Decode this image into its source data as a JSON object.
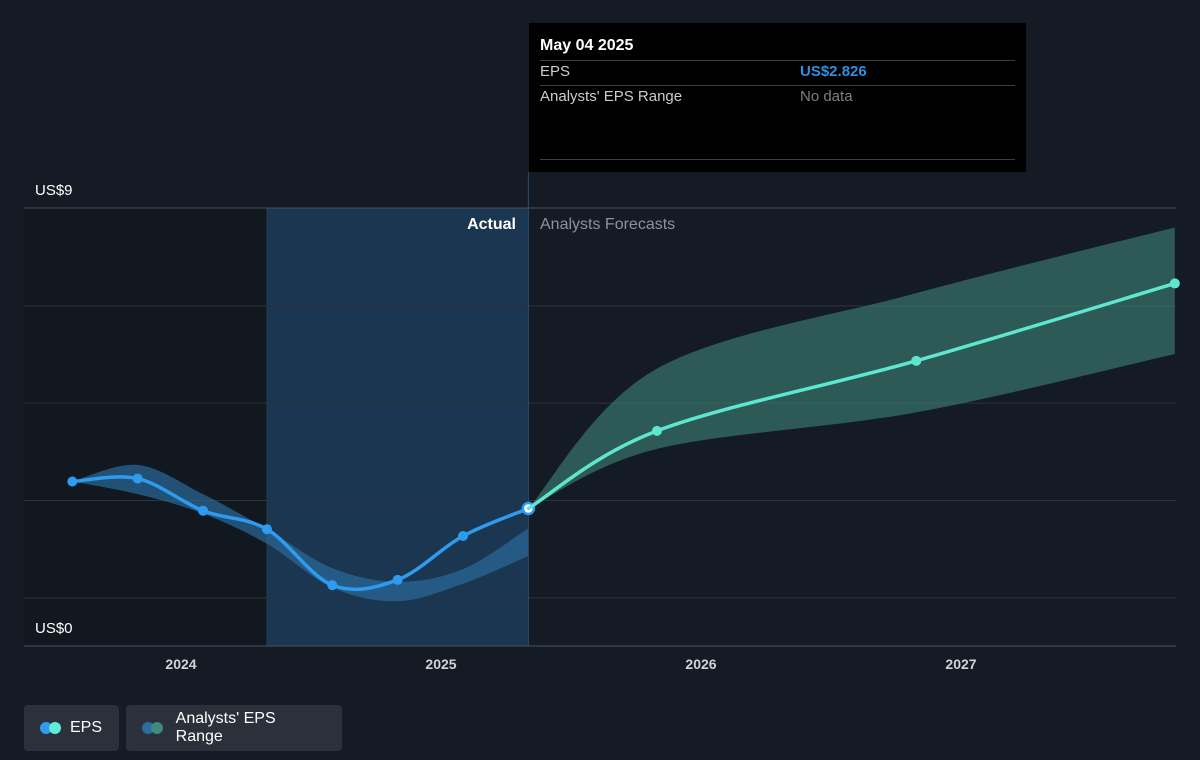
{
  "tooltip": {
    "date": "May 04 2025",
    "rows": [
      {
        "label": "EPS",
        "value": "US$2.826",
        "color": "#2f8fe0"
      },
      {
        "label": "Analysts' EPS Range",
        "value": "No data",
        "color": "#7b8088"
      }
    ]
  },
  "labels": {
    "actual": "Actual",
    "forecasts": "Analysts Forecasts"
  },
  "legend": [
    {
      "label": "EPS",
      "colors": [
        "#2f9bef",
        "#62ead6"
      ]
    },
    {
      "label": "Analysts' EPS Range",
      "colors": [
        "#2e6c9b",
        "#3f8a80"
      ]
    }
  ],
  "colors": {
    "actual_line": "#2f9bef",
    "forecast_line": "#5ee6cf",
    "actual_band": "#2b6a9a",
    "forecast_band": "#3b7f78",
    "highlight": "#1a3650",
    "background": "#151b24"
  },
  "chart_data": {
    "type": "line",
    "ylim": [
      0,
      9
    ],
    "y_tick_labels": [
      {
        "value": 9,
        "label": "US$9"
      },
      {
        "value": 0,
        "label": "US$0"
      }
    ],
    "x_ticks": [
      "2024",
      "2025",
      "2026",
      "2027"
    ],
    "grid": true,
    "legend_position": "bottom-left",
    "series": [
      {
        "name": "EPS",
        "segment": "actual",
        "points": [
          {
            "x": "2023-08-01",
            "y": 3.38
          },
          {
            "x": "2023-11-01",
            "y": 3.44
          },
          {
            "x": "2024-02-01",
            "y": 2.78
          },
          {
            "x": "2024-05-01",
            "y": 2.4
          },
          {
            "x": "2024-08-01",
            "y": 1.25
          },
          {
            "x": "2024-11-01",
            "y": 1.36
          },
          {
            "x": "2025-02-01",
            "y": 2.26
          },
          {
            "x": "2025-05-04",
            "y": 2.826
          }
        ]
      },
      {
        "name": "EPS",
        "segment": "forecast",
        "points": [
          {
            "x": "2025-05-04",
            "y": 2.826
          },
          {
            "x": "2025-11-01",
            "y": 4.42
          },
          {
            "x": "2026-11-01",
            "y": 5.86
          },
          {
            "x": "2027-10-31",
            "y": 7.45
          }
        ]
      },
      {
        "name": "Analysts' EPS Range",
        "segment": "actual",
        "points": [
          {
            "x": "2023-08-01",
            "low": 3.38,
            "high": 3.38
          },
          {
            "x": "2023-11-01",
            "low": 3.12,
            "high": 3.72
          },
          {
            "x": "2024-02-01",
            "low": 2.72,
            "high": 3.12
          },
          {
            "x": "2024-05-01",
            "low": 2.1,
            "high": 2.4
          },
          {
            "x": "2024-08-01",
            "low": 1.2,
            "high": 1.6
          },
          {
            "x": "2024-11-01",
            "low": 0.92,
            "high": 1.32
          },
          {
            "x": "2025-02-01",
            "low": 1.28,
            "high": 1.58
          },
          {
            "x": "2025-05-04",
            "low": 1.85,
            "high": 2.42
          }
        ]
      },
      {
        "name": "Analysts' EPS Range",
        "segment": "forecast",
        "points": [
          {
            "x": "2025-05-04",
            "low": 2.826,
            "high": 2.826
          },
          {
            "x": "2025-11-01",
            "low": 4.05,
            "high": 5.7
          },
          {
            "x": "2026-11-01",
            "low": 4.8,
            "high": 7.25
          },
          {
            "x": "2027-10-31",
            "low": 6.0,
            "high": 8.6
          }
        ]
      }
    ],
    "highlight_range": {
      "x": [
        "2024-05-01",
        "2025-05-04"
      ]
    }
  }
}
